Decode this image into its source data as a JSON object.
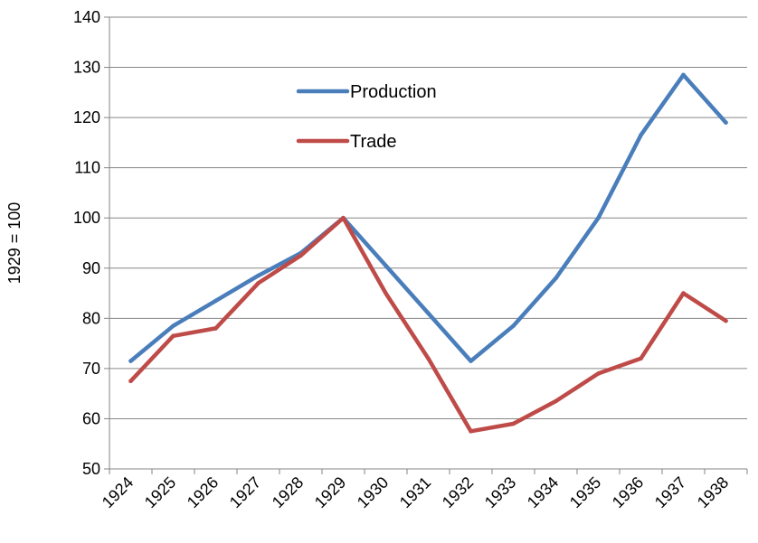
{
  "chart_data": {
    "type": "line",
    "title": "",
    "xlabel": "",
    "ylabel": "1929 = 100",
    "ylim": [
      50,
      140
    ],
    "ytick_step": 10,
    "grid": "horizontal",
    "legend_position": "upper-center",
    "categories": [
      "1924",
      "1925",
      "1926",
      "1927",
      "1928",
      "1929",
      "1930",
      "1931",
      "1932",
      "1933",
      "1934",
      "1935",
      "1936",
      "1937",
      "1938"
    ],
    "series": [
      {
        "name": "Production",
        "color": "#4a7ebb",
        "values": [
          71.5,
          78.5,
          83.5,
          88.5,
          93,
          100,
          90.5,
          81,
          71.5,
          78.5,
          88,
          100,
          116.5,
          128.5,
          119
        ]
      },
      {
        "name": "Trade",
        "color": "#be4b48",
        "values": [
          67.5,
          76.5,
          78,
          87,
          92.5,
          100,
          85,
          72,
          57.5,
          59,
          63.5,
          69,
          72,
          85,
          79.5
        ]
      }
    ]
  }
}
